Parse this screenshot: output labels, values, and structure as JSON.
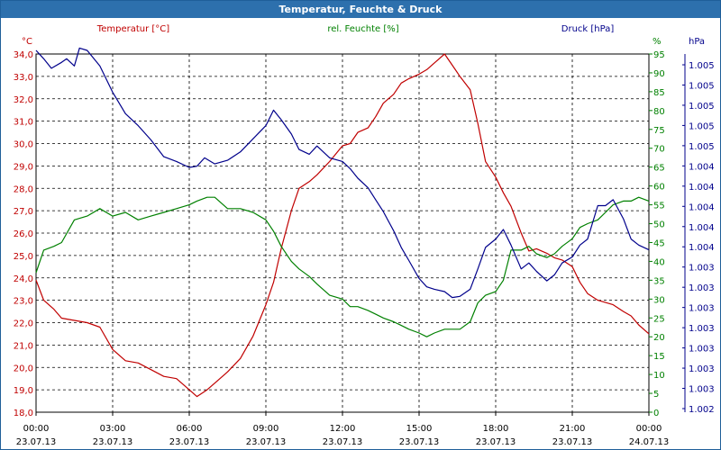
{
  "window": {
    "title": "Temperatur, Feuchte & Druck"
  },
  "chart_data": {
    "type": "line",
    "title": "Temperatur, Feuchte & Druck",
    "grid": true,
    "x": {
      "range_hours": [
        0,
        24
      ],
      "ticks": [
        {
          "hour": 0,
          "time": "00:00",
          "date": "23.07.13"
        },
        {
          "hour": 3,
          "time": "03:00",
          "date": "23.07.13"
        },
        {
          "hour": 6,
          "time": "06:00",
          "date": "23.07.13"
        },
        {
          "hour": 9,
          "time": "09:00",
          "date": "23.07.13"
        },
        {
          "hour": 12,
          "time": "12:00",
          "date": "23.07.13"
        },
        {
          "hour": 15,
          "time": "15:00",
          "date": "23.07.13"
        },
        {
          "hour": 18,
          "time": "18:00",
          "date": "23.07.13"
        },
        {
          "hour": 21,
          "time": "21:00",
          "date": "23.07.13"
        },
        {
          "hour": 24,
          "time": "00:00",
          "date": "24.07.13"
        }
      ]
    },
    "axes": {
      "temperature": {
        "unit": "°C",
        "legend": "Temperatur [°C]",
        "color": "#c00000",
        "range": [
          18.0,
          34.0
        ],
        "ticks": [
          "18,0",
          "19,0",
          "20,0",
          "21,0",
          "22,0",
          "23,0",
          "24,0",
          "25,0",
          "26,0",
          "27,0",
          "28,0",
          "29,0",
          "30,0",
          "31,0",
          "32,0",
          "33,0",
          "34,0"
        ]
      },
      "humidity": {
        "unit": "%",
        "legend": "rel. Feuchte [%]",
        "color": "#008000",
        "range": [
          0,
          95
        ],
        "ticks": [
          "0",
          "5",
          "10",
          "15",
          "20",
          "25",
          "30",
          "35",
          "40",
          "45",
          "50",
          "55",
          "60",
          "65",
          "70",
          "75",
          "80",
          "85",
          "90",
          "95"
        ]
      },
      "pressure": {
        "unit": "hPa",
        "legend": "Druck [hPa]",
        "color": "#00008b",
        "range": [
          1.002,
          1.005
        ],
        "ticks": [
          "1.002",
          "1.003",
          "1.003",
          "1.003",
          "1.003",
          "1.003",
          "1.003",
          "1.003",
          "1.004",
          "1.004",
          "1.004",
          "1.004",
          "1.004",
          "1.005",
          "1.005",
          "1.005",
          "1.005",
          "1.005"
        ]
      }
    },
    "series": [
      {
        "name": "Temperatur",
        "axis": "temperature",
        "color": "#c00000",
        "points": [
          [
            0,
            23.9
          ],
          [
            0.3,
            23.0
          ],
          [
            0.7,
            22.6
          ],
          [
            1,
            22.2
          ],
          [
            1.5,
            22.1
          ],
          [
            2,
            22.0
          ],
          [
            2.5,
            21.8
          ],
          [
            3,
            20.8
          ],
          [
            3.5,
            20.3
          ],
          [
            4,
            20.2
          ],
          [
            4.5,
            19.9
          ],
          [
            5,
            19.6
          ],
          [
            5.5,
            19.5
          ],
          [
            6,
            19.0
          ],
          [
            6.3,
            18.7
          ],
          [
            6.7,
            19.0
          ],
          [
            7,
            19.3
          ],
          [
            7.5,
            19.8
          ],
          [
            8,
            20.4
          ],
          [
            8.5,
            21.4
          ],
          [
            9,
            22.8
          ],
          [
            9.3,
            23.8
          ],
          [
            9.6,
            25.3
          ],
          [
            10,
            27.0
          ],
          [
            10.3,
            28.0
          ],
          [
            10.7,
            28.3
          ],
          [
            11,
            28.6
          ],
          [
            11.5,
            29.2
          ],
          [
            12,
            29.9
          ],
          [
            12.3,
            30.0
          ],
          [
            12.6,
            30.5
          ],
          [
            13,
            30.7
          ],
          [
            13.3,
            31.2
          ],
          [
            13.6,
            31.8
          ],
          [
            14,
            32.2
          ],
          [
            14.3,
            32.7
          ],
          [
            14.6,
            32.9
          ],
          [
            15,
            33.1
          ],
          [
            15.3,
            33.3
          ],
          [
            15.6,
            33.6
          ],
          [
            16,
            34.0
          ],
          [
            16.3,
            33.5
          ],
          [
            16.6,
            33.0
          ],
          [
            17,
            32.4
          ],
          [
            17.3,
            30.9
          ],
          [
            17.6,
            29.2
          ],
          [
            18,
            28.5
          ],
          [
            18.3,
            27.8
          ],
          [
            18.6,
            27.2
          ],
          [
            19,
            26.0
          ],
          [
            19.3,
            25.2
          ],
          [
            19.6,
            25.3
          ],
          [
            20,
            25.1
          ],
          [
            20.3,
            24.9
          ],
          [
            20.6,
            24.8
          ],
          [
            21,
            24.5
          ],
          [
            21.3,
            23.8
          ],
          [
            21.6,
            23.3
          ],
          [
            22,
            23.0
          ],
          [
            22.3,
            22.9
          ],
          [
            22.6,
            22.8
          ],
          [
            23,
            22.5
          ],
          [
            23.3,
            22.3
          ],
          [
            23.6,
            21.9
          ],
          [
            24,
            21.5
          ]
        ]
      },
      {
        "name": "rel. Feuchte",
        "axis": "humidity",
        "color": "#008000",
        "points": [
          [
            0,
            37
          ],
          [
            0.3,
            43
          ],
          [
            0.7,
            44
          ],
          [
            1,
            45
          ],
          [
            1.5,
            51
          ],
          [
            2,
            52
          ],
          [
            2.5,
            54
          ],
          [
            3,
            52
          ],
          [
            3.5,
            53
          ],
          [
            4,
            51
          ],
          [
            4.5,
            52
          ],
          [
            5,
            53
          ],
          [
            5.5,
            54
          ],
          [
            6,
            55
          ],
          [
            6.3,
            56
          ],
          [
            6.7,
            57
          ],
          [
            7,
            57
          ],
          [
            7.5,
            54
          ],
          [
            8,
            54
          ],
          [
            8.5,
            53
          ],
          [
            9,
            51
          ],
          [
            9.3,
            48
          ],
          [
            9.6,
            44
          ],
          [
            10,
            40
          ],
          [
            10.3,
            38
          ],
          [
            10.7,
            36
          ],
          [
            11,
            34
          ],
          [
            11.5,
            31
          ],
          [
            12,
            30
          ],
          [
            12.3,
            28
          ],
          [
            12.6,
            28
          ],
          [
            13,
            27
          ],
          [
            13.3,
            26
          ],
          [
            13.6,
            25
          ],
          [
            14,
            24
          ],
          [
            14.3,
            23
          ],
          [
            14.6,
            22
          ],
          [
            15,
            21
          ],
          [
            15.3,
            20
          ],
          [
            15.6,
            21
          ],
          [
            16,
            22
          ],
          [
            16.3,
            22
          ],
          [
            16.6,
            22
          ],
          [
            17,
            24
          ],
          [
            17.3,
            29
          ],
          [
            17.6,
            31
          ],
          [
            18,
            32
          ],
          [
            18.3,
            35
          ],
          [
            18.6,
            43
          ],
          [
            19,
            43
          ],
          [
            19.3,
            44
          ],
          [
            19.6,
            42
          ],
          [
            20,
            41
          ],
          [
            20.3,
            42
          ],
          [
            20.6,
            44
          ],
          [
            21,
            46
          ],
          [
            21.3,
            49
          ],
          [
            21.6,
            50
          ],
          [
            22,
            51
          ],
          [
            22.3,
            53
          ],
          [
            22.6,
            55
          ],
          [
            23,
            56
          ],
          [
            23.3,
            56
          ],
          [
            23.6,
            57
          ],
          [
            24,
            56
          ]
        ]
      },
      {
        "name": "Druck",
        "axis": "pressure",
        "color": "#00008b",
        "points": [
          [
            0,
            1.00503
          ],
          [
            0.3,
            1.00496
          ],
          [
            0.6,
            1.00488
          ],
          [
            1.0,
            1.00493
          ],
          [
            1.2,
            1.00496
          ],
          [
            1.5,
            1.0049
          ],
          [
            1.7,
            1.00505
          ],
          [
            2.0,
            1.00503
          ],
          [
            2.5,
            1.0049
          ],
          [
            3.0,
            1.00468
          ],
          [
            3.5,
            1.0045
          ],
          [
            4,
            1.0044
          ],
          [
            4.5,
            1.00428
          ],
          [
            5,
            1.00414
          ],
          [
            5.5,
            1.0041
          ],
          [
            6,
            1.00405
          ],
          [
            6.3,
            1.00406
          ],
          [
            6.6,
            1.00413
          ],
          [
            7,
            1.00408
          ],
          [
            7.5,
            1.00411
          ],
          [
            8,
            1.00418
          ],
          [
            8.5,
            1.00429
          ],
          [
            9,
            1.0044
          ],
          [
            9.3,
            1.00453
          ],
          [
            9.6,
            1.00445
          ],
          [
            10,
            1.00433
          ],
          [
            10.3,
            1.0042
          ],
          [
            10.7,
            1.00416
          ],
          [
            11,
            1.00423
          ],
          [
            11.5,
            1.00413
          ],
          [
            12,
            1.0041
          ],
          [
            12.3,
            1.00404
          ],
          [
            12.6,
            1.00396
          ],
          [
            13,
            1.00388
          ],
          [
            13.3,
            1.00378
          ],
          [
            13.6,
            1.00368
          ],
          [
            14,
            1.00352
          ],
          [
            14.3,
            1.00338
          ],
          [
            14.6,
            1.00327
          ],
          [
            15,
            1.00312
          ],
          [
            15.3,
            1.00305
          ],
          [
            15.6,
            1.00303
          ],
          [
            16,
            1.00301
          ],
          [
            16.3,
            1.00296
          ],
          [
            16.6,
            1.00297
          ],
          [
            17,
            1.00303
          ],
          [
            17.3,
            1.0032
          ],
          [
            17.6,
            1.00338
          ],
          [
            18,
            1.00345
          ],
          [
            18.3,
            1.00353
          ],
          [
            18.6,
            1.0034
          ],
          [
            19,
            1.0032
          ],
          [
            19.3,
            1.00325
          ],
          [
            19.6,
            1.00318
          ],
          [
            20,
            1.0031
          ],
          [
            20.3,
            1.00315
          ],
          [
            20.6,
            1.00325
          ],
          [
            21,
            1.0033
          ],
          [
            21.3,
            1.0034
          ],
          [
            21.6,
            1.00345
          ],
          [
            22,
            1.00373
          ],
          [
            22.3,
            1.00373
          ],
          [
            22.6,
            1.00378
          ],
          [
            23,
            1.00362
          ],
          [
            23.3,
            1.00345
          ],
          [
            23.6,
            1.0034
          ],
          [
            24,
            1.00336
          ]
        ]
      }
    ]
  }
}
